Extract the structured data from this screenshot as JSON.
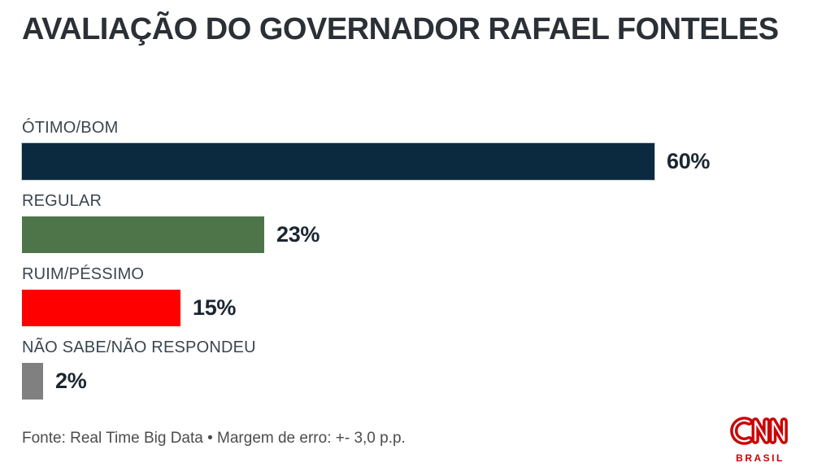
{
  "chart_data": {
    "type": "bar",
    "orientation": "horizontal",
    "title": "AVALIAÇÃO DO GOVERNADOR RAFAEL FONTELES",
    "categories": [
      "ÓTIMO/BOM",
      "REGULAR",
      "RUIM/PÉSSIMO",
      "NÃO SABE/NÃO RESPONDEU"
    ],
    "values": [
      60,
      23,
      15,
      2
    ],
    "value_labels": [
      "60%",
      "23%",
      "15%",
      "2%"
    ],
    "bar_colors": [
      "#0c2a3f",
      "#4d7549",
      "#fe0000",
      "#808080"
    ],
    "unit": "%",
    "xlim": [
      0,
      62
    ],
    "grid": false,
    "legend": false,
    "value_label_position": "right-of-bar"
  },
  "footer": {
    "source": "Fonte: Real Time Big Data • Margem de erro: +- 3,0 p.p."
  },
  "logo": {
    "brand": "CNN",
    "region": "BRASIL",
    "color": "#cc0000"
  }
}
